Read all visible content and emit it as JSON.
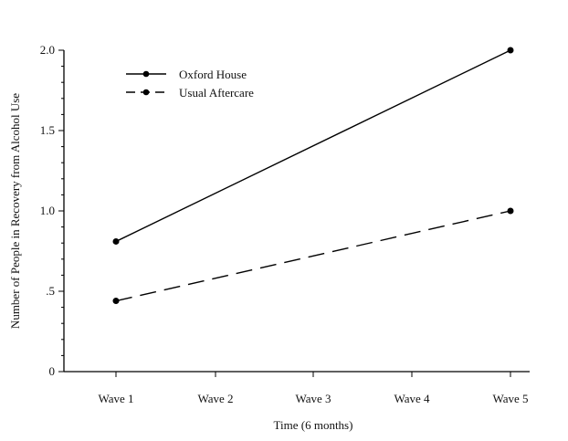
{
  "chart_data": {
    "type": "line",
    "title": "",
    "xlabel": "Time (6 months)",
    "ylabel": "Number of People in Recovery from Alcohol Use",
    "categories": [
      "Wave 1",
      "Wave 2",
      "Wave 3",
      "Wave 4",
      "Wave 5"
    ],
    "y_ticks": [
      {
        "value": 0,
        "label": "0"
      },
      {
        "value": 0.5,
        "label": ".5"
      },
      {
        "value": 1.0,
        "label": "1.0"
      },
      {
        "value": 1.5,
        "label": "1.5"
      },
      {
        "value": 2.0,
        "label": "2.0"
      }
    ],
    "ylim": [
      0,
      2.0
    ],
    "grid": false,
    "legend_position": "top-left",
    "series": [
      {
        "name": "Oxford House",
        "style": "solid",
        "color": "#000000",
        "points": [
          {
            "x": "Wave 1",
            "y": 0.81
          },
          {
            "x": "Wave 5",
            "y": 2.0
          }
        ]
      },
      {
        "name": "Usual Aftercare",
        "style": "dashed",
        "color": "#000000",
        "points": [
          {
            "x": "Wave 1",
            "y": 0.44
          },
          {
            "x": "Wave 5",
            "y": 1.0
          }
        ]
      }
    ]
  }
}
